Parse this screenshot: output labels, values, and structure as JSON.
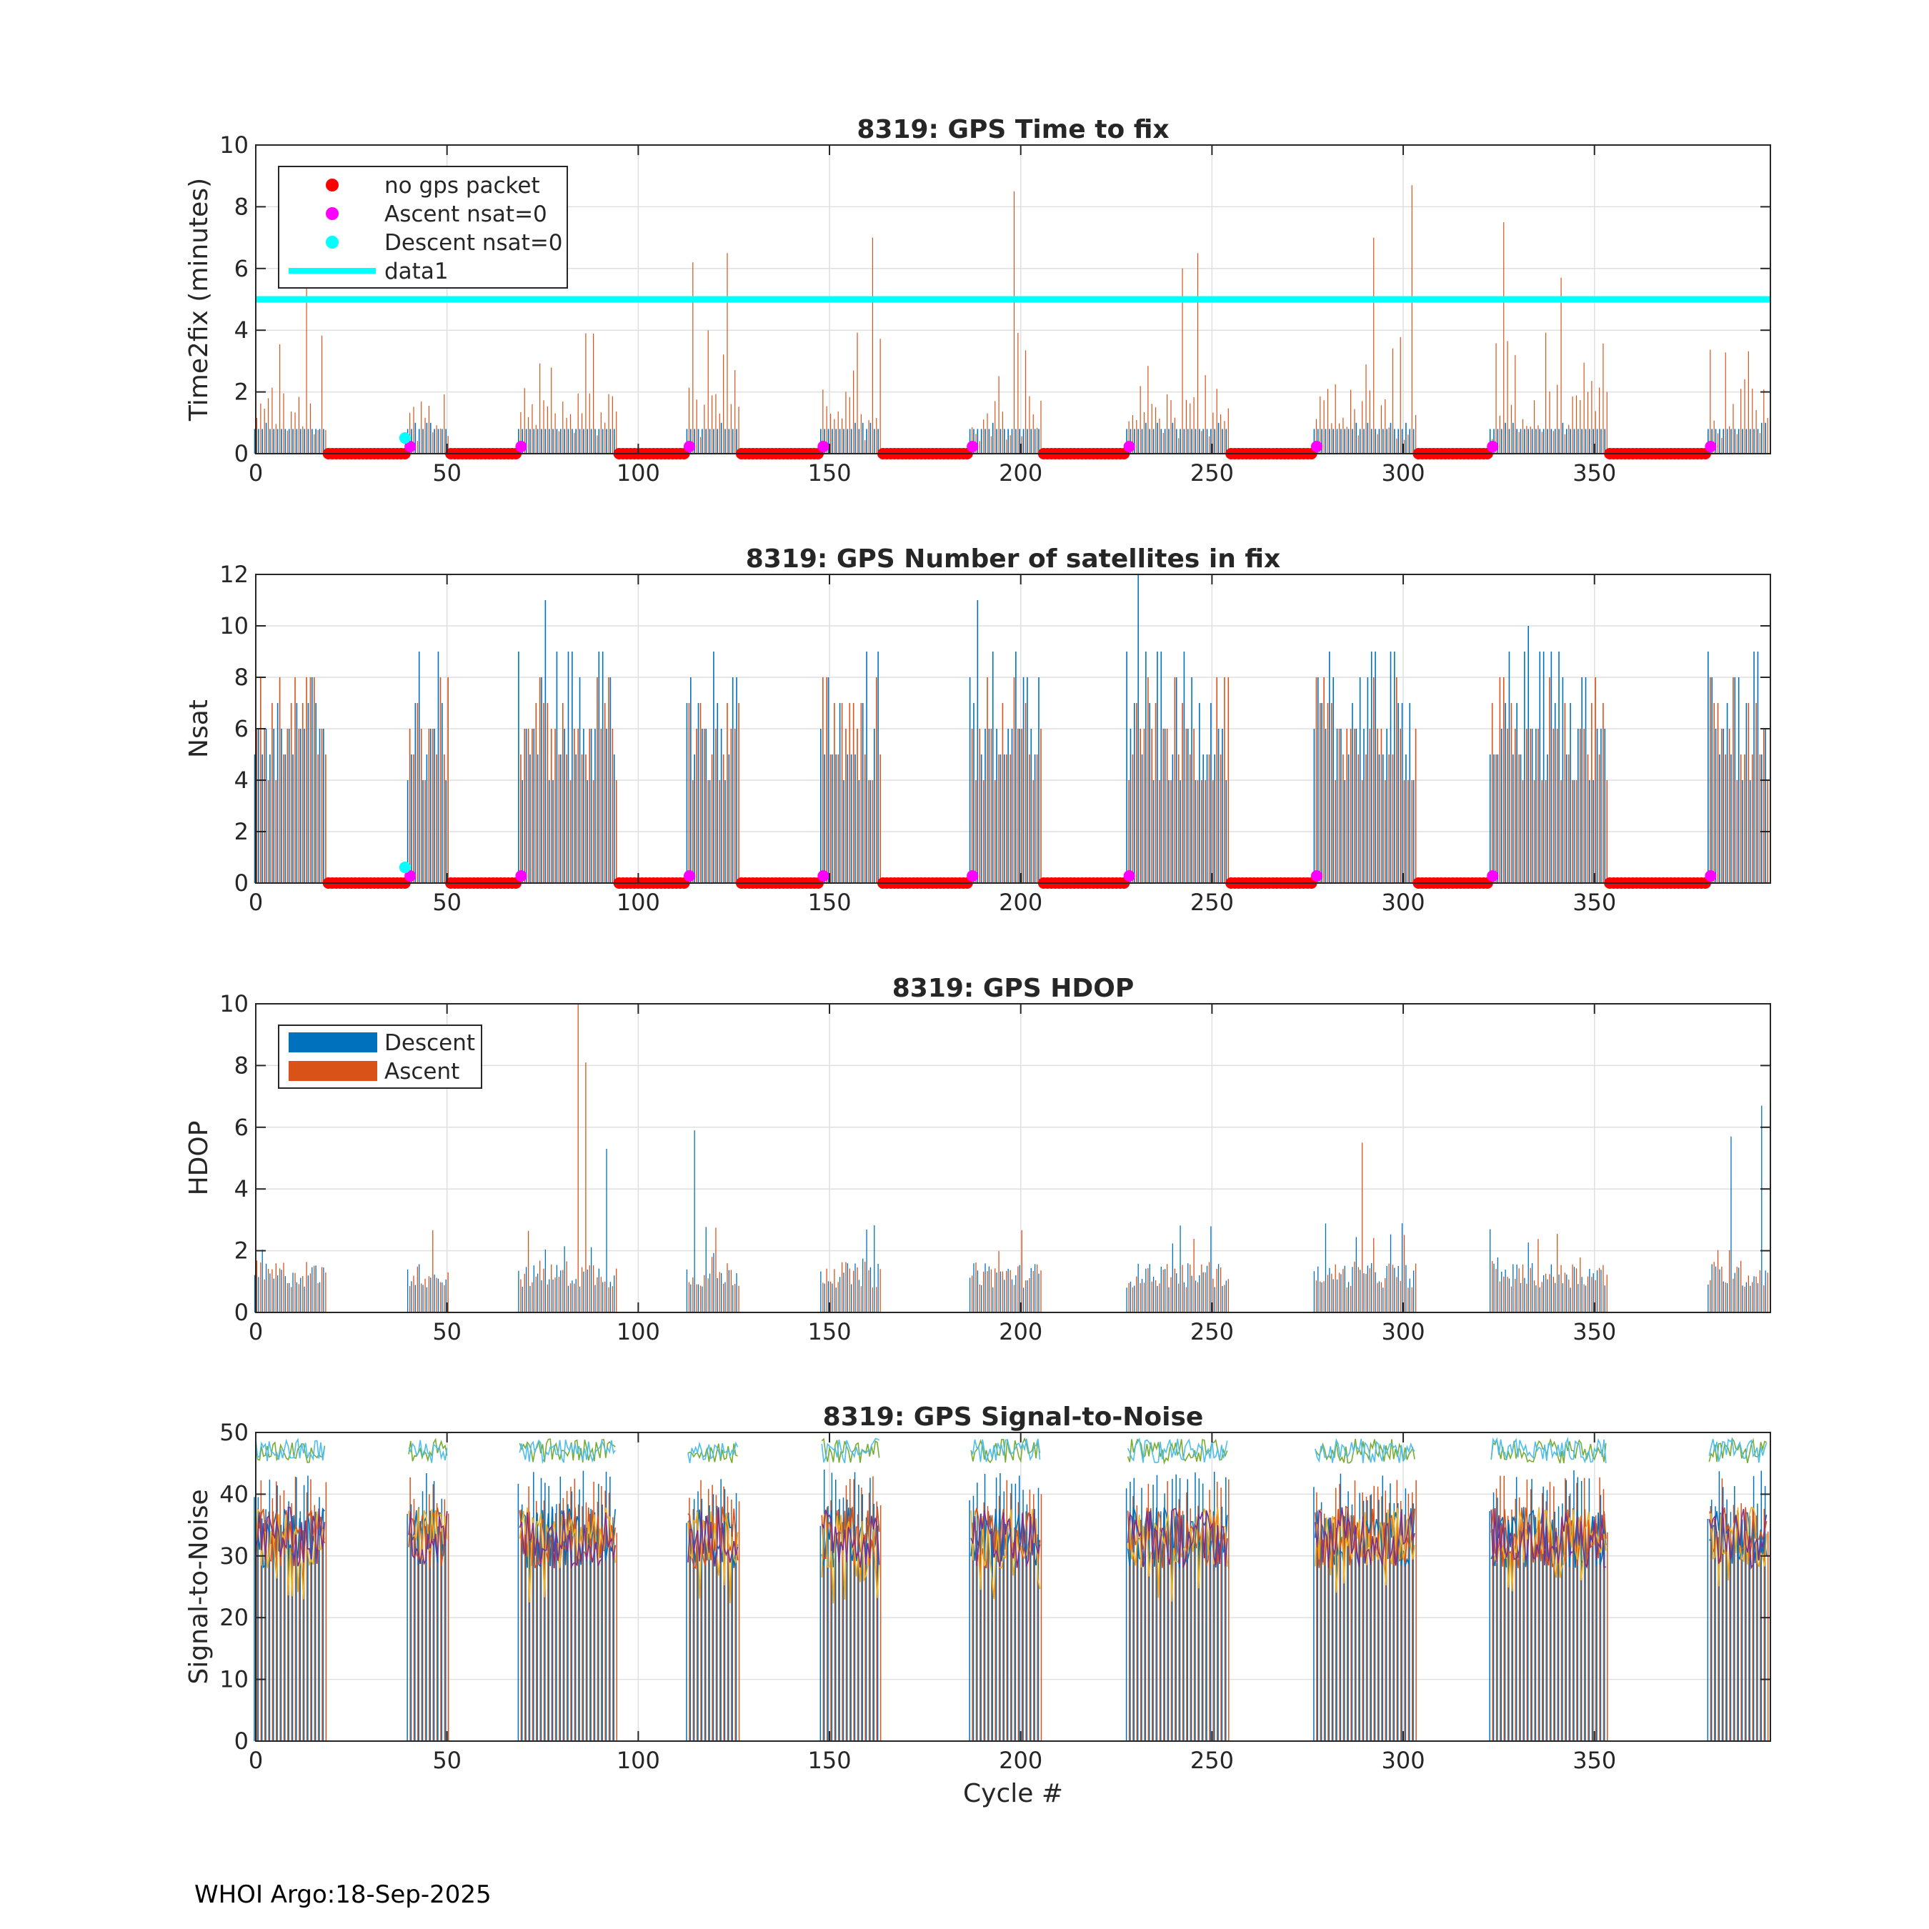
{
  "footer": "WHOI Argo:18-Sep-2025",
  "xlabel": "Cycle #",
  "colors": {
    "descent": "#0072BD",
    "ascent": "#D95319",
    "nogps": "#FF0000",
    "ascent_nsat0": "#FF00FF",
    "descent_nsat0": "#00FFFF",
    "threshold": "#00FFFF",
    "grid": "#dfdfdf",
    "snr_lines": [
      "#0072BD",
      "#D95319",
      "#EDB120",
      "#7E2F8E",
      "#77AC30",
      "#4DBEEE"
    ]
  },
  "chart_data": [
    {
      "id": "time2fix",
      "type": "bar",
      "title": "8319: GPS Time to fix",
      "xlabel": "",
      "ylabel": "Time2fix (minutes)",
      "xlim": [
        0,
        396
      ],
      "ylim": [
        0,
        10
      ],
      "xticks": [
        "0",
        "50",
        "100",
        "150",
        "200",
        "250",
        "300",
        "350"
      ],
      "yticks": [
        "0",
        "2",
        "4",
        "6",
        "8",
        "10"
      ],
      "threshold": 5,
      "legend": {
        "placement": "top-left",
        "entries": [
          "no gps packet",
          "Ascent nsat=0",
          "Descent nsat=0",
          "data1"
        ]
      },
      "notable_ascent_peaks": [
        {
          "cycle": 13,
          "value": 5.4
        },
        {
          "cycle": 114,
          "value": 6.2
        },
        {
          "cycle": 123,
          "value": 6.5
        },
        {
          "cycle": 161,
          "value": 7.0
        },
        {
          "cycle": 198,
          "value": 8.5
        },
        {
          "cycle": 242,
          "value": 6.0
        },
        {
          "cycle": 246,
          "value": 6.5
        },
        {
          "cycle": 292,
          "value": 7.0
        },
        {
          "cycle": 302,
          "value": 8.7
        },
        {
          "cycle": 326,
          "value": 7.5
        },
        {
          "cycle": 341,
          "value": 5.7
        }
      ],
      "descent_typical": 0.8
    },
    {
      "id": "nsat",
      "type": "bar",
      "title": "8319: GPS Number of satellites in fix",
      "xlabel": "",
      "ylabel": "Nsat",
      "xlim": [
        0,
        396
      ],
      "ylim": [
        0,
        12
      ],
      "xticks": [
        "0",
        "50",
        "100",
        "150",
        "200",
        "250",
        "300",
        "350"
      ],
      "yticks": [
        "0",
        "2",
        "4",
        "6",
        "8",
        "10",
        "12"
      ],
      "notable_peaks": [
        {
          "cycle": 76,
          "value": 11
        },
        {
          "cycle": 189,
          "value": 11
        },
        {
          "cycle": 231,
          "value": 12
        },
        {
          "cycle": 333,
          "value": 10
        }
      ],
      "typical_range": [
        4,
        8
      ]
    },
    {
      "id": "hdop",
      "type": "bar",
      "title": "8319: GPS HDOP",
      "xlabel": "",
      "ylabel": "HDOP",
      "xlim": [
        0,
        396
      ],
      "ylim": [
        0,
        10
      ],
      "xticks": [
        "0",
        "50",
        "100",
        "150",
        "200",
        "250",
        "300",
        "350"
      ],
      "yticks": [
        "0",
        "2",
        "4",
        "6",
        "8",
        "10"
      ],
      "legend": {
        "placement": "top-left",
        "entries": [
          "Descent",
          "Ascent"
        ]
      },
      "notable_peaks": [
        {
          "cycle": 84,
          "series": "Ascent",
          "value": 10.0
        },
        {
          "cycle": 86,
          "series": "Ascent",
          "value": 8.1
        },
        {
          "cycle": 115,
          "series": "Descent",
          "value": 5.9
        },
        {
          "cycle": 92,
          "series": "Descent",
          "value": 5.3
        },
        {
          "cycle": 289,
          "series": "Ascent",
          "value": 5.5
        },
        {
          "cycle": 394,
          "series": "Descent",
          "value": 6.7
        },
        {
          "cycle": 386,
          "series": "Descent",
          "value": 5.7
        }
      ]
    },
    {
      "id": "snr",
      "type": "bar",
      "title": "8319: GPS Signal-to-Noise",
      "xlabel": "Cycle #",
      "ylabel": "Signal-to-Noise",
      "xlim": [
        0,
        396
      ],
      "ylim": [
        0,
        50
      ],
      "xticks": [
        "0",
        "50",
        "100",
        "150",
        "200",
        "250",
        "300",
        "350"
      ],
      "yticks": [
        "0",
        "10",
        "20",
        "30",
        "40",
        "50"
      ],
      "series_count": 6,
      "upper_band": [
        42,
        50
      ],
      "middle_band": [
        25,
        40
      ]
    }
  ],
  "data_groups": [
    [
      0,
      18
    ],
    [
      40,
      50
    ],
    [
      69,
      94
    ],
    [
      113,
      126
    ],
    [
      148,
      163
    ],
    [
      187,
      205
    ],
    [
      228,
      254
    ],
    [
      277,
      303
    ],
    [
      323,
      353
    ],
    [
      380,
      395
    ]
  ],
  "no_gps_ranges": [
    [
      19,
      39
    ],
    [
      51,
      68
    ],
    [
      95,
      112
    ],
    [
      127,
      147
    ],
    [
      164,
      186
    ],
    [
      206,
      227
    ],
    [
      255,
      276
    ],
    [
      304,
      322
    ],
    [
      354,
      379
    ]
  ],
  "ascent_nsat0_cycles": [
    40,
    69,
    113,
    148,
    187,
    228,
    277,
    323,
    380
  ],
  "descent_nsat0_cycles": [
    39
  ]
}
